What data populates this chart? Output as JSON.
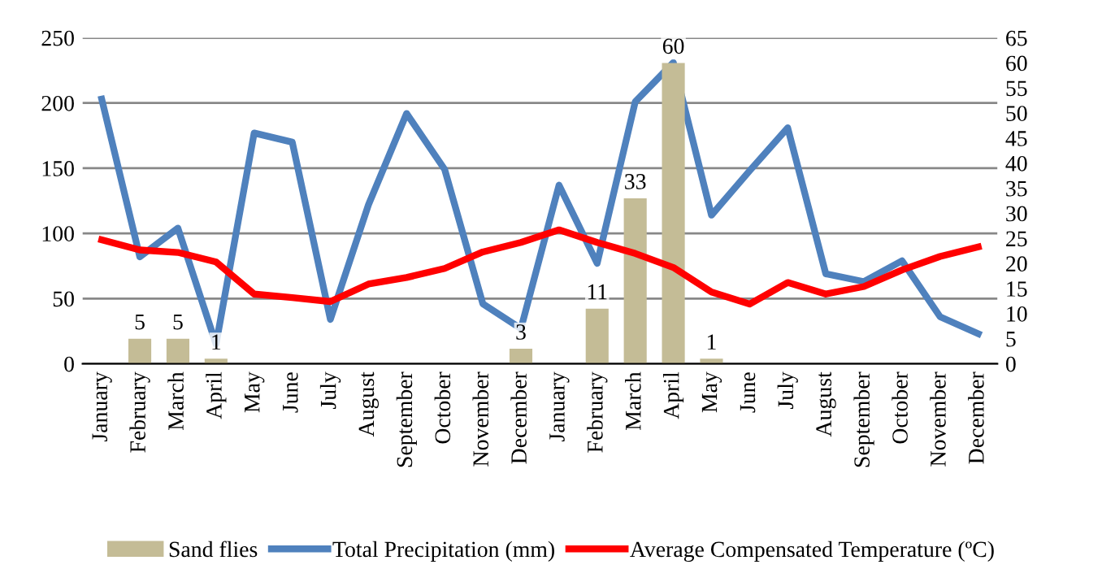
{
  "chart_data": {
    "type": "bar",
    "categories": [
      "January",
      "February",
      "March",
      "April",
      "May",
      "June",
      "July",
      "August",
      "September",
      "October",
      "November",
      "December",
      "January",
      "February",
      "March",
      "April",
      "May",
      "June",
      "July",
      "August",
      "September",
      "October",
      "November",
      "December"
    ],
    "series": [
      {
        "name": "Sand flies",
        "axis": "y2",
        "color": "#c4bc96",
        "values": [
          null,
          5,
          5,
          1,
          null,
          null,
          null,
          null,
          null,
          null,
          null,
          3,
          null,
          11,
          33,
          60,
          1,
          null,
          null,
          null,
          null,
          null,
          null,
          null
        ],
        "value_labels": [
          null,
          "5",
          "5",
          "1",
          null,
          null,
          null,
          null,
          null,
          null,
          null,
          "3",
          null,
          "11",
          "33",
          "60",
          "1",
          null,
          null,
          null,
          null,
          null,
          null,
          null
        ]
      },
      {
        "name": "Total Precipitation (mm)",
        "type": "line",
        "color": "#4f81bd",
        "values": [
          203,
          82,
          104,
          15,
          177,
          170,
          34,
          122,
          192,
          149,
          46,
          27,
          137,
          77,
          201,
          231,
          114,
          148,
          181,
          69,
          63,
          79,
          36,
          23
        ]
      },
      {
        "name": "Average Compensated Temperature (ºC)",
        "type": "line",
        "axis": "y2",
        "color": "#ff0000",
        "values": [
          24.7,
          22.7,
          22.2,
          20.3,
          13.9,
          13.2,
          12.4,
          15.9,
          17.2,
          19,
          22.3,
          24.2,
          26.7,
          24.2,
          22,
          19.2,
          14.3,
          11.9,
          16.2,
          13.9,
          15.4,
          18.7,
          21.4,
          23.3
        ]
      }
    ],
    "ylim": [
      0,
      250
    ],
    "yticks": [
      0,
      50,
      100,
      150,
      200,
      250
    ],
    "y2lim": [
      0,
      65
    ],
    "y2ticks": [
      0,
      5,
      10,
      15,
      20,
      25,
      30,
      35,
      40,
      45,
      50,
      55,
      60,
      65
    ],
    "grid": "y",
    "legend": "bottom",
    "marker": "none",
    "line_style": "solid"
  }
}
